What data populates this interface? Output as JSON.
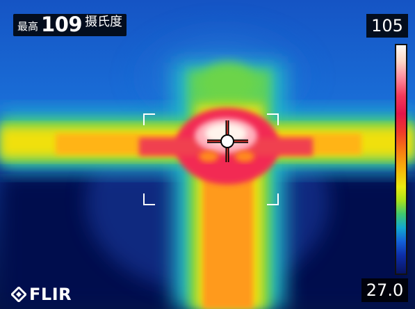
{
  "readout": {
    "label": "最高",
    "value": "109",
    "unit": "摄氏度"
  },
  "scale": {
    "max": "105",
    "min": "27.0"
  },
  "brand": {
    "logo_text": "FLIR",
    "logo_icon": "flir-diamond-icon"
  },
  "palette": {
    "background_cold": "#0a1a6a",
    "cool": "#1a5fd0",
    "mid": "#f5d400",
    "warm": "#ff9a1a",
    "hot": "#ef2c50",
    "hottest": "#fff4ec"
  }
}
